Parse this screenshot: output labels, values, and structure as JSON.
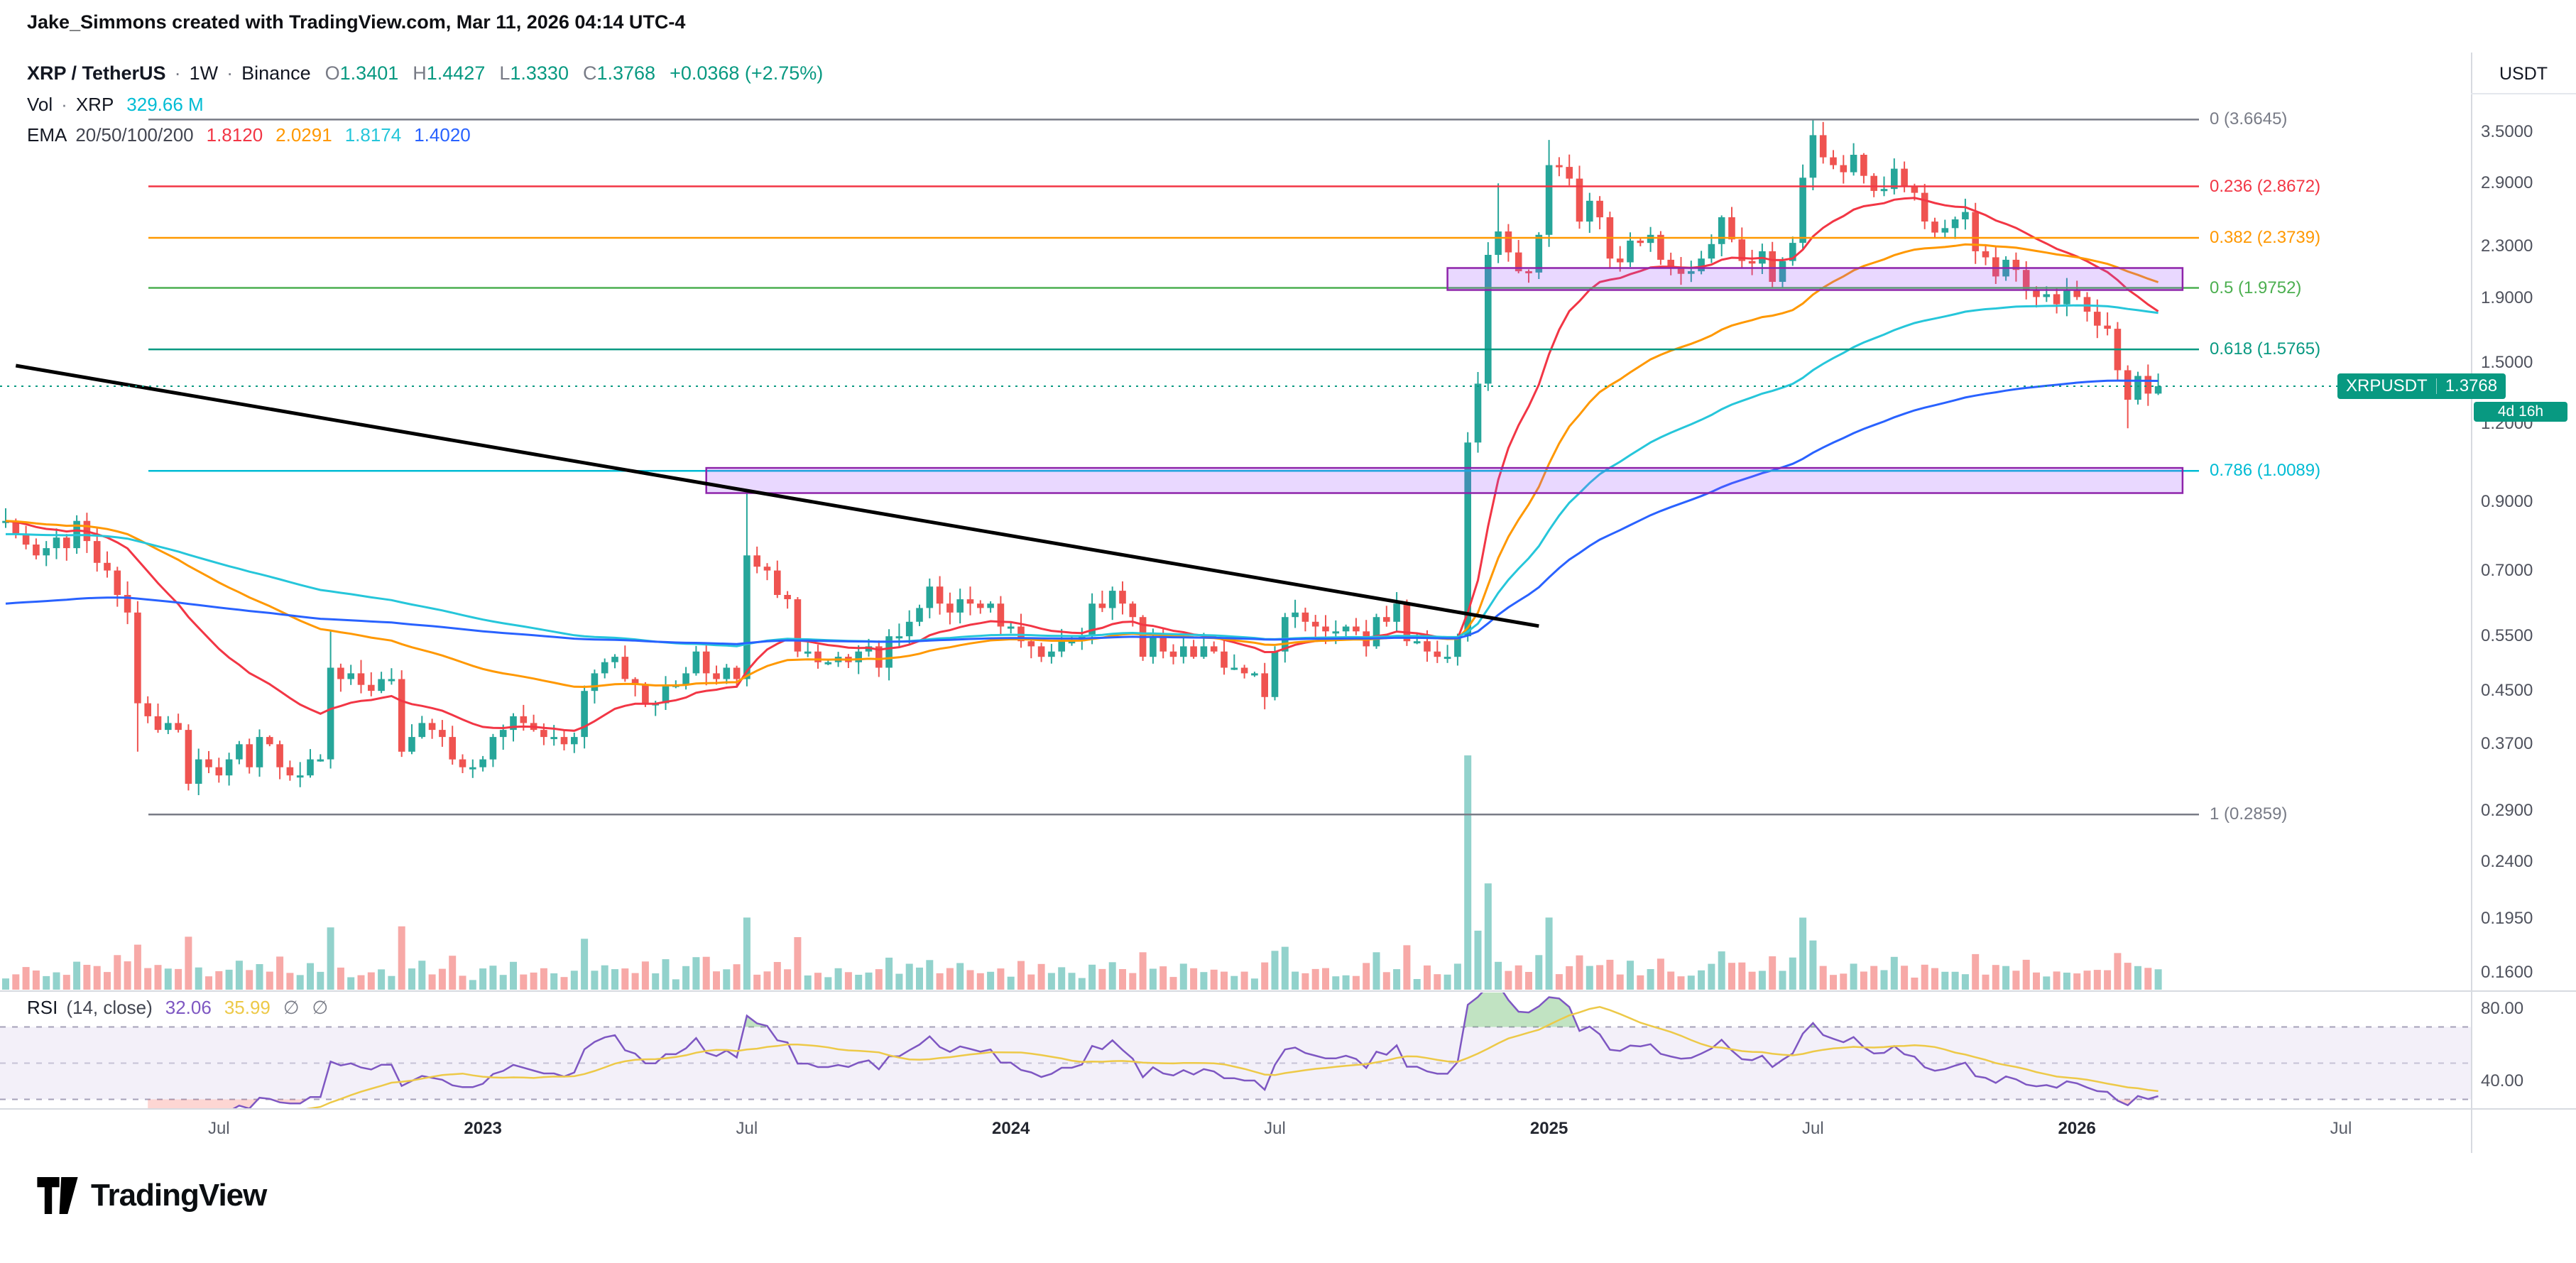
{
  "attribution": "Jake_Simmons created with TradingView.com, Mar 11, 2026 04:14 UTC-4",
  "symbol": {
    "title": "XRP / TetherUS",
    "dot": "·",
    "interval": "1W",
    "exchange": "Binance",
    "ohlc": [
      {
        "k": "O",
        "v": "1.3401"
      },
      {
        "k": "H",
        "v": "1.4427"
      },
      {
        "k": "L",
        "v": "1.3330"
      },
      {
        "k": "C",
        "v": "1.3768"
      }
    ],
    "change": "+0.0368 (+2.75%)",
    "up_color": "#089981"
  },
  "volume_legend": {
    "label": "Vol",
    "dot": "·",
    "symbol": "XRP",
    "value": "329.66 M",
    "color": "#00BCD4"
  },
  "ema_legend": {
    "label": "EMA",
    "params": "20/50/100/200",
    "values": [
      {
        "text": "1.8120",
        "color": "#F23645"
      },
      {
        "text": "2.0291",
        "color": "#FF9800"
      },
      {
        "text": "1.8174",
        "color": "#26C6DA"
      },
      {
        "text": "1.4020",
        "color": "#2962FF"
      }
    ]
  },
  "rsi_legend": {
    "label": "RSI",
    "params": "(14, close)",
    "values": [
      {
        "text": "32.06",
        "color": "#7E57C2"
      },
      {
        "text": "35.99",
        "color": "#EDC948"
      }
    ],
    "extras": [
      "∅",
      "∅"
    ]
  },
  "price_axis": {
    "currency": "USDT"
  },
  "price_label": {
    "symbol": "XRPUSDT",
    "price": "1.3768",
    "price_value": 1.3768,
    "countdown": "4d 16h",
    "bg": "#089981"
  },
  "logo": {
    "text": "TradingView"
  },
  "colors": {
    "up": "#26A69A",
    "down": "#EF5350",
    "volume_up": "rgba(38,166,154,0.5)",
    "volume_down": "rgba(239,83,80,0.5)",
    "ema20": "#F23645",
    "ema50": "#FF9800",
    "ema100": "#26C6DA",
    "ema200": "#2962FF",
    "rsi": "#7E57C2",
    "rsi_ma": "#EDC948",
    "current_price": "#089981"
  },
  "chart_data": {
    "type": "candlestick",
    "symbol": "XRPUSDT",
    "exchange": "Binance",
    "interval": "1W",
    "y_scale": "log",
    "x_start": "Feb 2022",
    "x_end": "Mar 2026",
    "current_price": 1.3768,
    "closes": [
      0.84,
      0.8,
      0.77,
      0.74,
      0.76,
      0.79,
      0.76,
      0.84,
      0.78,
      0.72,
      0.7,
      0.64,
      0.6,
      0.43,
      0.41,
      0.39,
      0.4,
      0.39,
      0.32,
      0.35,
      0.34,
      0.33,
      0.35,
      0.37,
      0.34,
      0.38,
      0.37,
      0.34,
      0.33,
      0.33,
      0.35,
      0.35,
      0.49,
      0.47,
      0.48,
      0.46,
      0.45,
      0.47,
      0.47,
      0.36,
      0.38,
      0.4,
      0.39,
      0.38,
      0.35,
      0.34,
      0.34,
      0.35,
      0.38,
      0.39,
      0.41,
      0.4,
      0.39,
      0.38,
      0.38,
      0.37,
      0.38,
      0.45,
      0.48,
      0.5,
      0.51,
      0.47,
      0.46,
      0.43,
      0.43,
      0.46,
      0.46,
      0.48,
      0.52,
      0.48,
      0.47,
      0.49,
      0.47,
      0.74,
      0.71,
      0.7,
      0.64,
      0.63,
      0.52,
      0.52,
      0.5,
      0.5,
      0.51,
      0.5,
      0.52,
      0.53,
      0.49,
      0.55,
      0.55,
      0.58,
      0.61,
      0.66,
      0.62,
      0.6,
      0.63,
      0.62,
      0.61,
      0.62,
      0.57,
      0.57,
      0.54,
      0.53,
      0.51,
      0.52,
      0.54,
      0.54,
      0.55,
      0.62,
      0.61,
      0.65,
      0.62,
      0.59,
      0.51,
      0.55,
      0.52,
      0.51,
      0.53,
      0.51,
      0.53,
      0.52,
      0.49,
      0.49,
      0.48,
      0.48,
      0.44,
      0.52,
      0.59,
      0.6,
      0.58,
      0.57,
      0.56,
      0.56,
      0.57,
      0.56,
      0.53,
      0.59,
      0.58,
      0.62,
      0.54,
      0.54,
      0.52,
      0.51,
      0.51,
      0.55,
      1.12,
      1.39,
      2.23,
      2.43,
      2.25,
      2.1,
      2.09,
      2.4,
      3.1,
      3.08,
      2.95,
      2.52,
      2.72,
      2.56,
      2.2,
      2.17,
      2.35,
      2.33,
      2.4,
      2.19,
      2.13,
      2.08,
      2.1,
      2.2,
      2.32,
      2.56,
      2.36,
      2.18,
      2.16,
      2.26,
      2.02,
      2.18,
      2.33,
      2.96,
      3.46,
      3.19,
      3.1,
      3.02,
      3.22,
      2.98,
      2.82,
      2.84,
      3.06,
      2.86,
      2.8,
      2.52,
      2.42,
      2.46,
      2.54,
      2.61,
      2.26,
      2.21,
      2.06,
      2.19,
      2.11,
      1.96,
      1.91,
      1.93,
      1.86,
      1.96,
      1.91,
      1.81,
      1.72,
      1.7,
      1.46,
      1.31,
      1.43,
      1.34,
      1.3768
    ],
    "wick_overrides": {
      "13": {
        "low": 0.36
      },
      "32": {
        "high": 0.56
      },
      "73": {
        "high": 0.94
      },
      "147": {
        "high": 2.9
      },
      "152": {
        "high": 3.4
      },
      "178": {
        "high": 3.6645
      },
      "209": {
        "low": 1.18
      },
      "212": {
        "open": 1.3401,
        "high": 1.4427,
        "low": 1.333
      }
    },
    "last_candle": {
      "open": 1.3401,
      "high": 1.4427,
      "low": 1.333,
      "close": 1.3768,
      "change": 0.0368,
      "change_pct": 2.75
    },
    "last_volume": "329.66 M",
    "ema_periods": [
      20,
      50,
      100,
      200
    ],
    "ema_values": [
      1.812,
      2.0291,
      1.8174,
      1.402
    ],
    "rsi_period": 14,
    "rsi_value": 32.06,
    "rsi_ma_value": 35.99,
    "fib_levels": [
      {
        "label": "0 (3.6645)",
        "price": 3.6645,
        "color": "#787B86"
      },
      {
        "label": "0.236 (2.8672)",
        "price": 2.8672,
        "color": "#F23645"
      },
      {
        "label": "0.382 (2.3739)",
        "price": 2.3739,
        "color": "#FF9800"
      },
      {
        "label": "0.5 (1.9752)",
        "price": 1.9752,
        "color": "#4CAF50"
      },
      {
        "label": "0.618 (1.5765)",
        "price": 1.5765,
        "color": "#089981"
      },
      {
        "label": "0.786 (1.0089)",
        "price": 1.0089,
        "color": "#00BCD4"
      },
      {
        "label": "1 (0.2859)",
        "price": 0.2859,
        "color": "#787B86"
      }
    ],
    "zones": [
      {
        "price_top": 2.125,
        "price_bottom": 1.96,
        "week_start": 142,
        "week_end": 214.4,
        "fill": "rgba(155,77,255,0.22)",
        "stroke": "#8E24AA"
      },
      {
        "price_top": 1.02,
        "price_bottom": 0.93,
        "week_start": 69,
        "week_end": 214.4,
        "fill": "rgba(155,77,255,0.22)",
        "stroke": "#8E24AA"
      }
    ],
    "trendline": {
      "week1": 1,
      "price1": 1.485,
      "week2": 151,
      "price2": 0.571,
      "color": "#000000"
    },
    "y_axis_ticks": [
      {
        "label": "3.5000",
        "value": 3.5
      },
      {
        "label": "2.9000",
        "value": 2.9
      },
      {
        "label": "2.3000",
        "value": 2.3
      },
      {
        "label": "1.9000",
        "value": 1.9
      },
      {
        "label": "1.5000",
        "value": 1.5
      },
      {
        "label": "1.2000",
        "value": 1.2
      },
      {
        "label": "0.9000",
        "value": 0.9
      },
      {
        "label": "0.7000",
        "value": 0.7
      },
      {
        "label": "0.5500",
        "value": 0.55
      },
      {
        "label": "0.4500",
        "value": 0.45
      },
      {
        "label": "0.3700",
        "value": 0.37
      },
      {
        "label": "0.2900",
        "value": 0.29
      },
      {
        "label": "0.2400",
        "value": 0.24
      },
      {
        "label": "0.1950",
        "value": 0.195
      },
      {
        "label": "0.1600",
        "value": 0.16
      }
    ],
    "rsi_axis_ticks": [
      {
        "label": "80.00",
        "value": 80
      },
      {
        "label": "40.00",
        "value": 40
      }
    ],
    "time_axis": [
      {
        "label": "Jul",
        "week": 21
      },
      {
        "label": "2023",
        "week": 47,
        "year": true
      },
      {
        "label": "Jul",
        "week": 73
      },
      {
        "label": "2024",
        "week": 99,
        "year": true
      },
      {
        "label": "Jul",
        "week": 125
      },
      {
        "label": "2025",
        "week": 152,
        "year": true
      },
      {
        "label": "Jul",
        "week": 178
      },
      {
        "label": "2026",
        "week": 204,
        "year": true
      },
      {
        "label": "Jul",
        "week": 230
      }
    ]
  }
}
